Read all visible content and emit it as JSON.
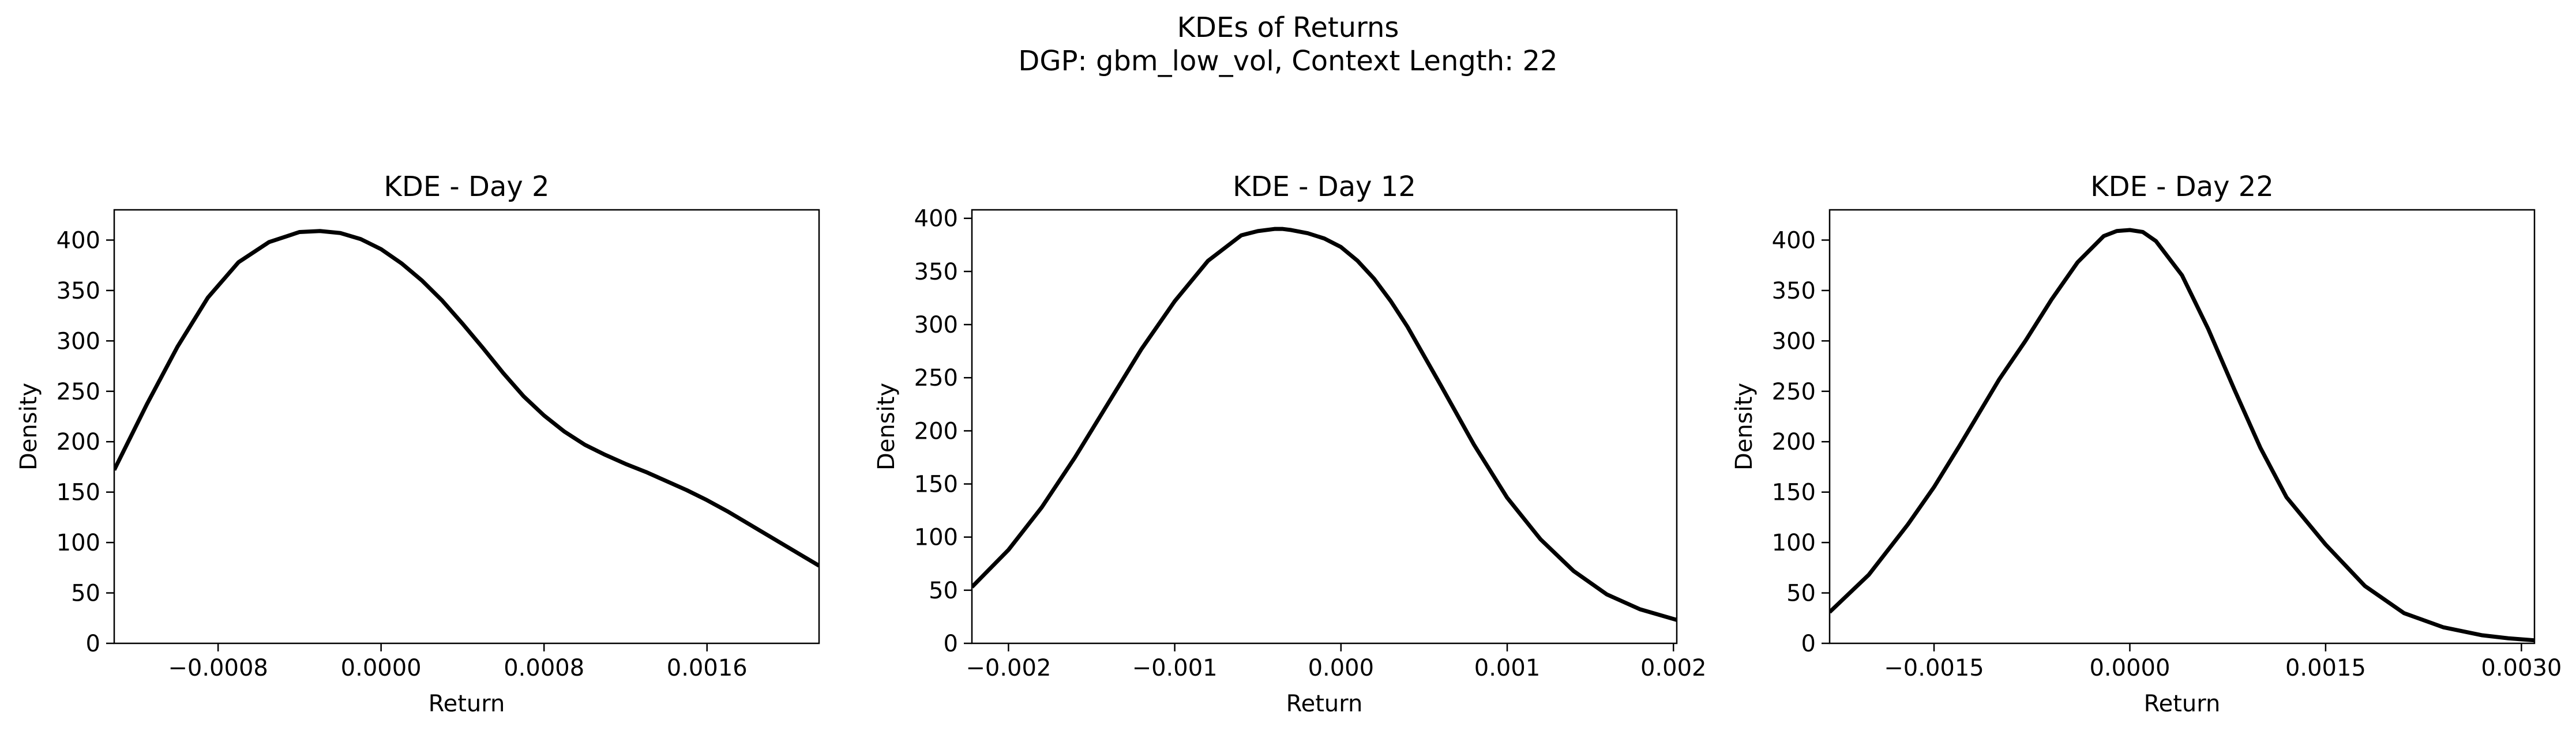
{
  "figure": {
    "title_line1": "KDEs of Returns",
    "title_line2": "DGP: gbm_low_vol, Context Length: 22",
    "line_color": "#000000"
  },
  "chart_data": [
    {
      "type": "line",
      "title": "KDE - Day 2",
      "xlabel": "Return",
      "ylabel": "Density",
      "xlim": [
        -0.00131,
        0.00215
      ],
      "ylim": [
        0,
        430
      ],
      "xticks": [
        -0.0008,
        0.0,
        0.0008,
        0.0016
      ],
      "xtick_labels": [
        "−0.0008",
        "0.0000",
        "0.0008",
        "0.0016"
      ],
      "yticks": [
        0,
        50,
        100,
        150,
        200,
        250,
        300,
        350,
        400
      ],
      "ytick_labels": [
        "0",
        "50",
        "100",
        "150",
        "200",
        "250",
        "300",
        "350",
        "400"
      ],
      "grid": false,
      "series": [
        {
          "x": [
            -0.00131,
            -0.00115,
            -0.001,
            -0.00085,
            -0.0007,
            -0.00055,
            -0.0004,
            -0.0003,
            -0.0002,
            -0.0001,
            0.0,
            0.0001,
            0.0002,
            0.0003,
            0.0004,
            0.0005,
            0.0006,
            0.0007,
            0.0008,
            0.0009,
            0.001,
            0.0011,
            0.0012,
            0.0013,
            0.0014,
            0.0015,
            0.0016,
            0.0017,
            0.0018,
            0.0019,
            0.002,
            0.00215
          ],
          "y": [
            172,
            237,
            294,
            343,
            378,
            398,
            408,
            409,
            407,
            401,
            391,
            377,
            360,
            340,
            317,
            293,
            268,
            245,
            226,
            210,
            197,
            187,
            178,
            170,
            161,
            152,
            142,
            131,
            119,
            107,
            95,
            77
          ]
        }
      ]
    },
    {
      "type": "line",
      "title": "KDE - Day 12",
      "xlabel": "Return",
      "ylabel": "Density",
      "xlim": [
        -0.00222,
        0.00202
      ],
      "ylim": [
        0,
        408
      ],
      "xticks": [
        -0.002,
        -0.001,
        0.0,
        0.001,
        0.002
      ],
      "xtick_labels": [
        "−0.002",
        "−0.001",
        "0.000",
        "0.001",
        "0.002"
      ],
      "yticks": [
        0,
        50,
        100,
        150,
        200,
        250,
        300,
        350,
        400
      ],
      "ytick_labels": [
        "0",
        "50",
        "100",
        "150",
        "200",
        "250",
        "300",
        "350",
        "400"
      ],
      "grid": false,
      "series": [
        {
          "x": [
            -0.00222,
            -0.002,
            -0.0018,
            -0.0016,
            -0.0014,
            -0.0012,
            -0.001,
            -0.0008,
            -0.0006,
            -0.0005,
            -0.0004,
            -0.00035,
            -0.0003,
            -0.0002,
            -0.0001,
            0.0,
            0.0001,
            0.0002,
            0.0003,
            0.0004,
            0.0006,
            0.0008,
            0.001,
            0.0012,
            0.0014,
            0.0016,
            0.0018,
            0.00202
          ],
          "y": [
            53,
            88,
            128,
            175,
            226,
            277,
            322,
            360,
            384,
            388,
            390,
            390,
            389,
            386,
            381,
            373,
            360,
            343,
            322,
            298,
            243,
            187,
            137,
            98,
            68,
            46,
            32,
            22
          ]
        }
      ]
    },
    {
      "type": "line",
      "title": "KDE - Day 22",
      "xlabel": "Return",
      "ylabel": "Density",
      "xlim": [
        -0.0023,
        0.0031
      ],
      "ylim": [
        0,
        430
      ],
      "xticks": [
        -0.0015,
        0.0,
        0.0015,
        0.003
      ],
      "xtick_labels": [
        "−0.0015",
        "0.0000",
        "0.0015",
        "0.0030"
      ],
      "yticks": [
        0,
        50,
        100,
        150,
        200,
        250,
        300,
        350,
        400
      ],
      "ytick_labels": [
        "0",
        "50",
        "100",
        "150",
        "200",
        "250",
        "300",
        "350",
        "400"
      ],
      "grid": false,
      "series": [
        {
          "x": [
            -0.0023,
            -0.002,
            -0.0017,
            -0.0015,
            -0.0013,
            -0.001,
            -0.0008,
            -0.0006,
            -0.0004,
            -0.0002,
            -0.0001,
            0.0,
            0.0001,
            0.0002,
            0.0004,
            0.0006,
            0.0008,
            0.001,
            0.0012,
            0.0015,
            0.0018,
            0.0021,
            0.0024,
            0.0027,
            0.0029,
            0.0031
          ],
          "y": [
            31,
            68,
            118,
            155,
            197,
            262,
            300,
            341,
            378,
            404,
            409,
            410,
            408,
            399,
            365,
            312,
            252,
            194,
            145,
            98,
            57,
            30,
            16,
            8,
            5,
            3
          ]
        }
      ]
    }
  ]
}
